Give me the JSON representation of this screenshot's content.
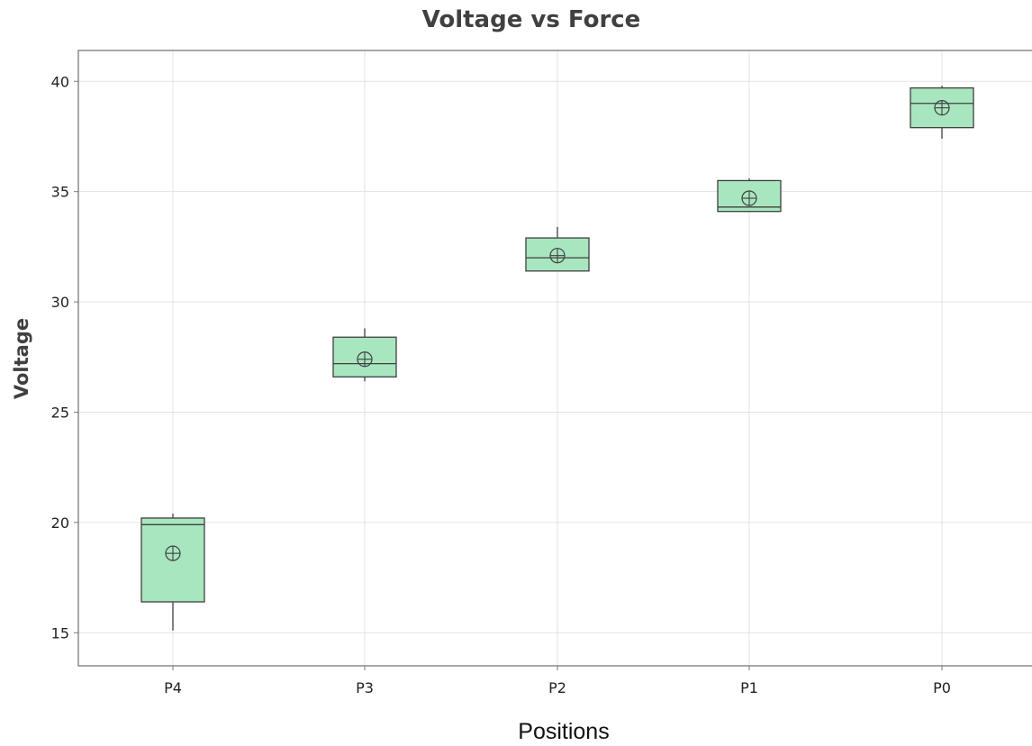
{
  "chart_data": {
    "type": "box",
    "title": "Voltage vs Force",
    "xlabel": "Positions",
    "ylabel": "Voltage",
    "categories": [
      "P4",
      "P3",
      "P2",
      "P1",
      "P0"
    ],
    "boxes": [
      {
        "category": "P4",
        "min": 15.1,
        "q1": 16.4,
        "median": 19.9,
        "q3": 20.2,
        "max": 20.4,
        "mean": 18.6
      },
      {
        "category": "P3",
        "min": 26.4,
        "q1": 26.6,
        "median": 27.2,
        "q3": 28.4,
        "max": 28.8,
        "mean": 27.4
      },
      {
        "category": "P2",
        "min": 31.4,
        "q1": 31.4,
        "median": 32.0,
        "q3": 32.9,
        "max": 33.4,
        "mean": 32.1
      },
      {
        "category": "P1",
        "min": 34.1,
        "q1": 34.1,
        "median": 34.3,
        "q3": 35.5,
        "max": 35.6,
        "mean": 34.7
      },
      {
        "category": "P0",
        "min": 37.4,
        "q1": 37.9,
        "median": 39.0,
        "q3": 39.7,
        "max": 39.8,
        "mean": 38.8
      }
    ],
    "yticks": [
      15,
      20,
      25,
      30,
      35,
      40
    ],
    "ylim": [
      13.5,
      41.4
    ],
    "grid": true,
    "legend": "none",
    "mean_marker": "circled-cross",
    "colors": {
      "box_fill": "#a8e6bf",
      "box_stroke": "#3f3f3f",
      "grid": "#e3e3e3",
      "frame": "#7a7a7a"
    }
  }
}
